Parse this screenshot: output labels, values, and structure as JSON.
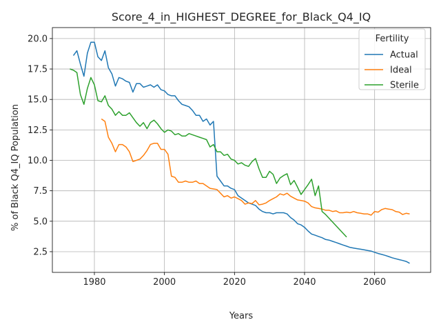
{
  "chart_data": {
    "type": "line",
    "title": "Score_4_in_HIGHEST_DEGREE_for_Black_Q4_IQ",
    "xlabel": "Years",
    "ylabel": "% of Black Q4_IQ Population",
    "xlim": [
      1968,
      2076
    ],
    "ylim": [
      0.8,
      20.9
    ],
    "xticks": [
      1980,
      2000,
      2020,
      2040,
      2060
    ],
    "yticks": [
      2.5,
      5.0,
      7.5,
      10.0,
      12.5,
      15.0,
      17.5,
      20.0
    ],
    "xtick_labels": [
      "1980",
      "2000",
      "2020",
      "2040",
      "2060"
    ],
    "ytick_labels": [
      "2.5",
      "5.0",
      "7.5",
      "10.0",
      "12.5",
      "15.0",
      "17.5",
      "20.0"
    ],
    "grid": true,
    "legend": {
      "title": "Fertility",
      "placement": "top-right"
    },
    "series": [
      {
        "name": "Actual",
        "color": "#1f77b4",
        "x": [
          1974,
          1975,
          1976,
          1977,
          1978,
          1979,
          1980,
          1981,
          1982,
          1983,
          1984,
          1985,
          1986,
          1987,
          1988,
          1989,
          1990,
          1991,
          1992,
          1993,
          1994,
          1995,
          1996,
          1997,
          1998,
          1999,
          2000,
          2001,
          2002,
          2003,
          2004,
          2005,
          2006,
          2007,
          2008,
          2009,
          2010,
          2011,
          2012,
          2013,
          2014,
          2015,
          2016,
          2017,
          2018,
          2019,
          2020,
          2021,
          2022,
          2023,
          2024,
          2025,
          2026,
          2027,
          2028,
          2029,
          2030,
          2031,
          2032,
          2033,
          2034,
          2035,
          2036,
          2037,
          2038,
          2039,
          2040,
          2041,
          2042,
          2043,
          2044,
          2045,
          2046,
          2047,
          2048,
          2049,
          2050,
          2051,
          2052,
          2053,
          2054,
          2055,
          2056,
          2057,
          2058,
          2059,
          2060,
          2061,
          2062,
          2063,
          2064,
          2065,
          2066,
          2067,
          2068,
          2069,
          2070
        ],
        "values": [
          18.6,
          19.0,
          17.9,
          16.9,
          18.8,
          19.7,
          19.7,
          18.5,
          18.2,
          19.0,
          17.6,
          17.1,
          16.1,
          16.8,
          16.7,
          16.5,
          16.4,
          15.6,
          16.3,
          16.3,
          16.0,
          16.1,
          16.2,
          16.0,
          16.2,
          15.8,
          15.7,
          15.4,
          15.3,
          15.3,
          14.9,
          14.6,
          14.5,
          14.4,
          14.1,
          13.7,
          13.7,
          13.2,
          13.4,
          12.9,
          13.2,
          8.7,
          8.3,
          7.9,
          7.9,
          7.7,
          7.6,
          7.1,
          6.9,
          6.7,
          6.5,
          6.4,
          6.3,
          6.0,
          5.8,
          5.7,
          5.7,
          5.6,
          5.7,
          5.7,
          5.7,
          5.6,
          5.3,
          5.1,
          4.8,
          4.7,
          4.5,
          4.2,
          3.95,
          3.85,
          3.75,
          3.65,
          3.5,
          3.45,
          3.35,
          3.25,
          3.15,
          3.05,
          2.95,
          2.85,
          2.8,
          2.75,
          2.7,
          2.65,
          2.6,
          2.55,
          2.45,
          2.35,
          2.28,
          2.2,
          2.1,
          2.0,
          1.92,
          1.85,
          1.78,
          1.7,
          1.55
        ]
      },
      {
        "name": "Ideal",
        "color": "#ff7f0e",
        "x": [
          1982,
          1983,
          1984,
          1985,
          1986,
          1987,
          1988,
          1989,
          1990,
          1991,
          1992,
          1993,
          1994,
          1995,
          1996,
          1997,
          1998,
          1999,
          2000,
          2001,
          2002,
          2003,
          2004,
          2005,
          2006,
          2007,
          2008,
          2009,
          2010,
          2011,
          2012,
          2013,
          2014,
          2015,
          2016,
          2017,
          2018,
          2019,
          2020,
          2021,
          2022,
          2023,
          2024,
          2025,
          2026,
          2027,
          2028,
          2029,
          2030,
          2031,
          2032,
          2033,
          2034,
          2035,
          2036,
          2037,
          2038,
          2039,
          2040,
          2041,
          2042,
          2043,
          2044,
          2045,
          2046,
          2047,
          2048,
          2049,
          2050,
          2051,
          2052,
          2053,
          2054,
          2055,
          2056,
          2057,
          2058,
          2059,
          2060,
          2061,
          2062,
          2063,
          2064,
          2065,
          2066,
          2067,
          2068,
          2069,
          2070
        ],
        "values": [
          13.4,
          13.2,
          11.9,
          11.4,
          10.7,
          11.3,
          11.3,
          11.1,
          10.7,
          9.9,
          10.0,
          10.1,
          10.4,
          10.8,
          11.3,
          11.4,
          11.4,
          10.9,
          10.9,
          10.5,
          8.7,
          8.6,
          8.2,
          8.2,
          8.3,
          8.2,
          8.2,
          8.3,
          8.1,
          8.1,
          7.9,
          7.7,
          7.65,
          7.6,
          7.3,
          7.0,
          7.1,
          6.9,
          7.0,
          6.85,
          6.7,
          6.4,
          6.5,
          6.45,
          6.7,
          6.35,
          6.4,
          6.5,
          6.7,
          6.85,
          7.0,
          7.25,
          7.15,
          7.3,
          7.05,
          6.9,
          6.75,
          6.7,
          6.65,
          6.5,
          6.2,
          6.1,
          6.05,
          6.0,
          5.9,
          5.9,
          5.8,
          5.85,
          5.7,
          5.7,
          5.75,
          5.7,
          5.8,
          5.7,
          5.65,
          5.6,
          5.6,
          5.5,
          5.8,
          5.75,
          5.95,
          6.05,
          6.0,
          5.95,
          5.8,
          5.75,
          5.55,
          5.65,
          5.6
        ]
      },
      {
        "name": "Sterile",
        "color": "#2ca02c",
        "x": [
          1973,
          1974,
          1975,
          1976,
          1977,
          1978,
          1979,
          1980,
          1981,
          1982,
          1983,
          1984,
          1985,
          1986,
          1987,
          1988,
          1989,
          1990,
          1991,
          1992,
          1993,
          1994,
          1995,
          1996,
          1997,
          1998,
          1999,
          2000,
          2001,
          2002,
          2003,
          2004,
          2005,
          2006,
          2007,
          2008,
          2009,
          2010,
          2011,
          2012,
          2013,
          2014,
          2015,
          2016,
          2017,
          2018,
          2019,
          2020,
          2021,
          2022,
          2023,
          2024,
          2025,
          2026,
          2027,
          2028,
          2029,
          2030,
          2031,
          2032,
          2033,
          2034,
          2035,
          2036,
          2037,
          2038,
          2039,
          2040,
          2041,
          2042,
          2043,
          2044,
          2045,
          2046,
          2052
        ],
        "values": [
          17.5,
          17.4,
          17.2,
          15.4,
          14.6,
          15.9,
          16.8,
          16.2,
          14.9,
          14.8,
          15.3,
          14.5,
          14.2,
          13.7,
          14.0,
          13.7,
          13.7,
          13.9,
          13.5,
          13.1,
          12.8,
          13.1,
          12.6,
          13.1,
          13.3,
          13.0,
          12.6,
          12.3,
          12.5,
          12.4,
          12.1,
          12.2,
          12.0,
          12.0,
          12.2,
          12.1,
          12.0,
          11.9,
          11.8,
          11.7,
          11.1,
          11.3,
          10.7,
          10.7,
          10.4,
          10.5,
          10.1,
          10.0,
          9.7,
          9.8,
          9.6,
          9.5,
          9.9,
          10.15,
          9.3,
          8.6,
          8.6,
          9.1,
          8.85,
          8.1,
          8.55,
          8.75,
          8.9,
          8.0,
          8.35,
          7.8,
          7.2,
          7.6,
          8.0,
          8.45,
          7.1,
          7.9,
          5.8,
          5.55,
          3.7
        ]
      }
    ]
  }
}
